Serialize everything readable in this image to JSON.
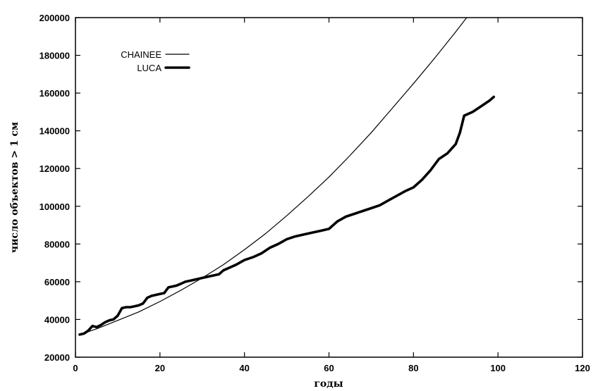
{
  "chart_data": {
    "type": "line",
    "xlabel": "годы",
    "ylabel": "число объектов > 1 см",
    "xlim": [
      0,
      120
    ],
    "ylim": [
      20000,
      200000
    ],
    "xticks": [
      0,
      20,
      40,
      60,
      80,
      100,
      120
    ],
    "yticks": [
      20000,
      40000,
      60000,
      80000,
      100000,
      120000,
      140000,
      160000,
      180000,
      200000
    ],
    "grid": false,
    "legend_position": "top-left",
    "colors": {
      "line": "#000000",
      "background": "#ffffff"
    },
    "series": [
      {
        "name": "CHAINEE",
        "style": "thin",
        "x": [
          1,
          5,
          10,
          15,
          20,
          25,
          30,
          35,
          40,
          45,
          50,
          55,
          60,
          65,
          70,
          75,
          80,
          85,
          90,
          95,
          100
        ],
        "y": [
          32000,
          35000,
          39500,
          44000,
          49500,
          55500,
          62000,
          69000,
          77000,
          85500,
          95000,
          105000,
          115500,
          127000,
          139000,
          152000,
          165000,
          178500,
          192500,
          207000,
          222000
        ]
      },
      {
        "name": "LUCA",
        "style": "thick",
        "x": [
          1,
          2,
          3,
          4,
          5,
          6,
          7,
          8,
          9,
          10,
          11,
          12,
          13,
          14,
          15,
          16,
          17,
          18,
          19,
          20,
          21,
          22,
          23,
          24,
          25,
          26,
          27,
          28,
          30,
          32,
          34,
          35,
          36,
          38,
          40,
          42,
          44,
          46,
          48,
          50,
          52,
          54,
          56,
          58,
          60,
          62,
          64,
          66,
          68,
          70,
          72,
          74,
          76,
          78,
          80,
          82,
          84,
          86,
          88,
          90,
          91,
          92,
          94,
          96,
          98,
          99
        ],
        "y": [
          32000,
          32500,
          34000,
          36500,
          36000,
          37000,
          38500,
          39500,
          40000,
          42000,
          46000,
          46500,
          46500,
          47000,
          47500,
          48500,
          51500,
          52500,
          53000,
          53500,
          54000,
          57000,
          57500,
          58000,
          59000,
          60000,
          60500,
          61000,
          62000,
          63000,
          64000,
          66000,
          67000,
          69000,
          71500,
          73000,
          75000,
          78000,
          80000,
          82500,
          84000,
          85000,
          86000,
          87000,
          88000,
          92000,
          94500,
          96000,
          97500,
          99000,
          100500,
          103000,
          105500,
          108000,
          110000,
          114000,
          119000,
          125000,
          128000,
          133000,
          139000,
          148000,
          150000,
          153000,
          156000,
          158000
        ]
      }
    ]
  }
}
